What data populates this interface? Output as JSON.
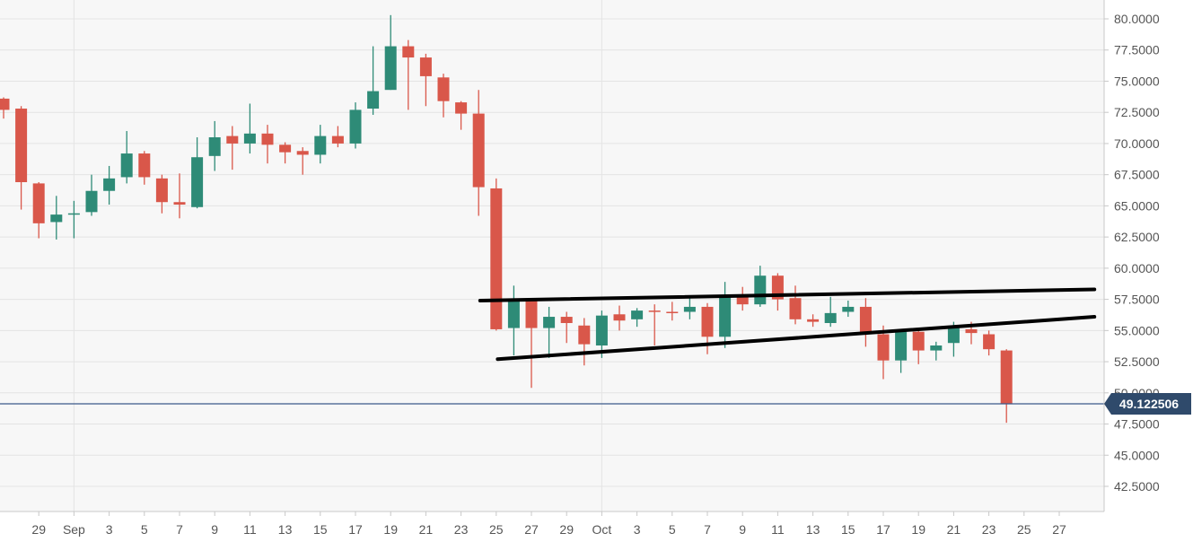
{
  "chart_data": {
    "type": "candlestick",
    "grid": true,
    "ylim": [
      41.0,
      81.5
    ],
    "y_ticks": [
      "42.5000",
      "45.0000",
      "47.5000",
      "50.0000",
      "52.5000",
      "55.0000",
      "57.5000",
      "60.0000",
      "62.5000",
      "65.0000",
      "67.5000",
      "70.0000",
      "72.5000",
      "75.0000",
      "77.5000",
      "80.0000"
    ],
    "x_tick_labels": [
      "29",
      "Sep",
      "3",
      "5",
      "7",
      "9",
      "11",
      "13",
      "15",
      "17",
      "19",
      "21",
      "23",
      "25",
      "27",
      "29",
      "Oct",
      "3",
      "5",
      "7",
      "9",
      "11",
      "13",
      "15",
      "17",
      "19",
      "21",
      "23",
      "25",
      "27"
    ],
    "current_price": {
      "value": 49.122506,
      "label": "49.122506",
      "line_color": "#3b5a8a",
      "badge_color": "#2f4a6b"
    },
    "up_color": "#2e8b77",
    "down_color": "#d9574a",
    "candles": [
      {
        "date": "Aug 27",
        "open": 73.6,
        "high": 73.7,
        "low": 72.0,
        "close": 72.7
      },
      {
        "date": "Aug 28",
        "open": 72.8,
        "high": 73.0,
        "low": 64.7,
        "close": 66.9
      },
      {
        "date": "Aug 29",
        "open": 66.8,
        "high": 66.9,
        "low": 62.4,
        "close": 63.6
      },
      {
        "date": "Aug 30",
        "open": 63.7,
        "high": 65.8,
        "low": 62.3,
        "close": 64.3
      },
      {
        "date": "Aug 31",
        "open": 64.3,
        "high": 65.4,
        "low": 62.4,
        "close": 64.4
      },
      {
        "date": "Sep 1",
        "open": 64.5,
        "high": 67.5,
        "low": 64.2,
        "close": 66.2
      },
      {
        "date": "Sep 2",
        "open": 66.2,
        "high": 68.2,
        "low": 65.1,
        "close": 67.2
      },
      {
        "date": "Sep 3",
        "open": 67.3,
        "high": 71.0,
        "low": 66.8,
        "close": 69.2
      },
      {
        "date": "Sep 4",
        "open": 69.2,
        "high": 69.4,
        "low": 66.7,
        "close": 67.3
      },
      {
        "date": "Sep 5",
        "open": 67.2,
        "high": 67.5,
        "low": 64.4,
        "close": 65.3
      },
      {
        "date": "Sep 6",
        "open": 65.3,
        "high": 67.6,
        "low": 64.0,
        "close": 65.1
      },
      {
        "date": "Sep 7",
        "open": 64.9,
        "high": 70.5,
        "low": 64.8,
        "close": 68.9
      },
      {
        "date": "Sep 8",
        "open": 69.0,
        "high": 71.8,
        "low": 67.8,
        "close": 70.5
      },
      {
        "date": "Sep 9",
        "open": 70.6,
        "high": 71.4,
        "low": 67.9,
        "close": 70.0
      },
      {
        "date": "Sep 10",
        "open": 70.0,
        "high": 73.2,
        "low": 69.2,
        "close": 70.8
      },
      {
        "date": "Sep 11",
        "open": 70.8,
        "high": 71.5,
        "low": 68.4,
        "close": 69.9
      },
      {
        "date": "Sep 12",
        "open": 69.9,
        "high": 70.1,
        "low": 68.4,
        "close": 69.3
      },
      {
        "date": "Sep 13",
        "open": 69.4,
        "high": 69.7,
        "low": 67.5,
        "close": 69.1
      },
      {
        "date": "Sep 14",
        "open": 69.1,
        "high": 71.5,
        "low": 68.4,
        "close": 70.6
      },
      {
        "date": "Sep 15",
        "open": 70.6,
        "high": 71.4,
        "low": 69.7,
        "close": 70.0
      },
      {
        "date": "Sep 16",
        "open": 70.0,
        "high": 73.3,
        "low": 69.6,
        "close": 72.7
      },
      {
        "date": "Sep 17",
        "open": 72.8,
        "high": 77.8,
        "low": 72.3,
        "close": 74.2
      },
      {
        "date": "Sep 18",
        "open": 74.3,
        "high": 80.3,
        "low": 74.3,
        "close": 77.8
      },
      {
        "date": "Sep 19",
        "open": 77.8,
        "high": 78.3,
        "low": 72.7,
        "close": 76.9
      },
      {
        "date": "Sep 20",
        "open": 76.9,
        "high": 77.2,
        "low": 73.0,
        "close": 75.4
      },
      {
        "date": "Sep 21",
        "open": 75.3,
        "high": 75.6,
        "low": 72.1,
        "close": 73.4
      },
      {
        "date": "Sep 22",
        "open": 73.3,
        "high": 73.4,
        "low": 71.1,
        "close": 72.4
      },
      {
        "date": "Sep 23",
        "open": 72.4,
        "high": 74.3,
        "low": 64.2,
        "close": 66.5
      },
      {
        "date": "Sep 24",
        "open": 66.4,
        "high": 67.2,
        "low": 55.0,
        "close": 55.1
      },
      {
        "date": "Sep 25",
        "open": 55.2,
        "high": 58.6,
        "low": 53.0,
        "close": 57.4
      },
      {
        "date": "Sep 26",
        "open": 57.4,
        "high": 57.6,
        "low": 50.4,
        "close": 55.2
      },
      {
        "date": "Sep 27",
        "open": 55.2,
        "high": 56.9,
        "low": 52.8,
        "close": 56.1
      },
      {
        "date": "Sep 28",
        "open": 56.1,
        "high": 56.5,
        "low": 54.0,
        "close": 55.6
      },
      {
        "date": "Sep 29",
        "open": 55.4,
        "high": 56.0,
        "low": 52.2,
        "close": 53.9
      },
      {
        "date": "Sep 30",
        "open": 53.8,
        "high": 56.6,
        "low": 52.8,
        "close": 56.2
      },
      {
        "date": "Oct 1",
        "open": 56.3,
        "high": 57.0,
        "low": 55.0,
        "close": 55.8
      },
      {
        "date": "Oct 2",
        "open": 55.9,
        "high": 56.8,
        "low": 55.3,
        "close": 56.6
      },
      {
        "date": "Oct 3",
        "open": 56.6,
        "high": 57.1,
        "low": 53.8,
        "close": 56.5
      },
      {
        "date": "Oct 4",
        "open": 56.5,
        "high": 57.3,
        "low": 55.8,
        "close": 56.4
      },
      {
        "date": "Oct 5",
        "open": 56.5,
        "high": 57.6,
        "low": 55.9,
        "close": 56.9
      },
      {
        "date": "Oct 6",
        "open": 56.9,
        "high": 57.2,
        "low": 53.1,
        "close": 54.5
      },
      {
        "date": "Oct 7",
        "open": 54.5,
        "high": 58.9,
        "low": 53.6,
        "close": 57.7
      },
      {
        "date": "Oct 8",
        "open": 57.7,
        "high": 58.5,
        "low": 56.6,
        "close": 57.1
      },
      {
        "date": "Oct 9",
        "open": 57.1,
        "high": 60.2,
        "low": 56.9,
        "close": 59.4
      },
      {
        "date": "Oct 10",
        "open": 59.4,
        "high": 59.6,
        "low": 56.6,
        "close": 57.5
      },
      {
        "date": "Oct 11",
        "open": 57.6,
        "high": 58.6,
        "low": 55.5,
        "close": 55.9
      },
      {
        "date": "Oct 12",
        "open": 55.9,
        "high": 56.3,
        "low": 55.3,
        "close": 55.7
      },
      {
        "date": "Oct 13",
        "open": 55.6,
        "high": 57.7,
        "low": 55.3,
        "close": 56.4
      },
      {
        "date": "Oct 14",
        "open": 56.5,
        "high": 57.4,
        "low": 56.1,
        "close": 56.9
      },
      {
        "date": "Oct 15",
        "open": 56.9,
        "high": 57.6,
        "low": 53.7,
        "close": 54.8
      },
      {
        "date": "Oct 16",
        "open": 54.7,
        "high": 55.4,
        "low": 51.1,
        "close": 52.6
      },
      {
        "date": "Oct 17",
        "open": 52.6,
        "high": 55.1,
        "low": 51.6,
        "close": 54.9
      },
      {
        "date": "Oct 18",
        "open": 54.9,
        "high": 55.1,
        "low": 52.3,
        "close": 53.4
      },
      {
        "date": "Oct 19",
        "open": 53.4,
        "high": 54.1,
        "low": 52.6,
        "close": 53.8
      },
      {
        "date": "Oct 20",
        "open": 54.0,
        "high": 55.7,
        "low": 52.9,
        "close": 55.2
      },
      {
        "date": "Oct 21",
        "open": 55.1,
        "high": 55.7,
        "low": 53.9,
        "close": 54.8
      },
      {
        "date": "Oct 22",
        "open": 54.7,
        "high": 55.0,
        "low": 53.0,
        "close": 53.5
      },
      {
        "date": "Oct 23",
        "open": 53.4,
        "high": 53.5,
        "low": 47.6,
        "close": 49.1
      }
    ],
    "trendlines": [
      {
        "name": "upper-trendline",
        "from": {
          "date": "Sep 24",
          "price": 57.4
        },
        "to": {
          "date": "Oct 28",
          "price": 58.3
        },
        "color": "#000000"
      },
      {
        "name": "lower-trendline",
        "from": {
          "date": "Sep 25",
          "price": 52.7
        },
        "to": {
          "date": "Oct 28",
          "price": 56.1
        },
        "color": "#000000"
      }
    ]
  }
}
